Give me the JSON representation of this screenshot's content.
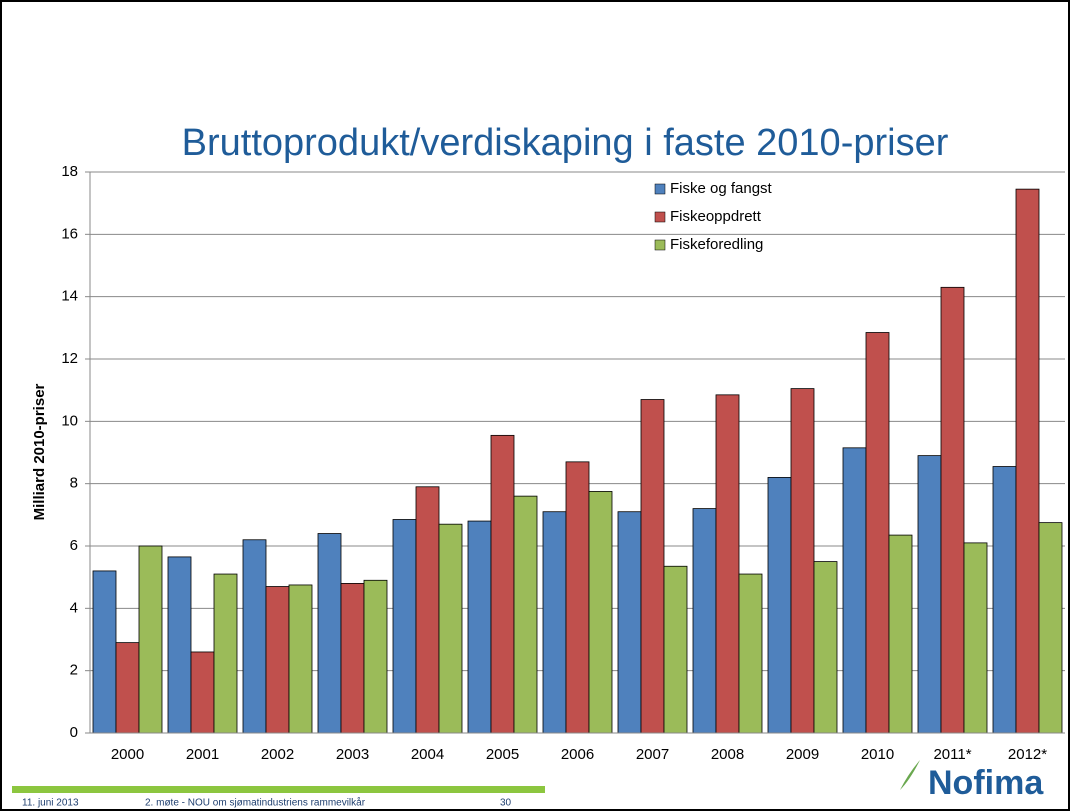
{
  "chart_data": {
    "type": "bar",
    "title": "Bruttoprodukt/verdiskaping i faste 2010-priser",
    "y_label": "Milliard 2010-priser",
    "categories": [
      "2000",
      "2001",
      "2002",
      "2003",
      "2004",
      "2005",
      "2006",
      "2007",
      "2008",
      "2009",
      "2010",
      "2011*",
      "2012*"
    ],
    "series": [
      {
        "name": "Fiske og fangst",
        "color": "#4f81bd",
        "values": [
          5.2,
          5.65,
          6.2,
          6.4,
          6.85,
          6.8,
          7.1,
          7.1,
          7.2,
          8.2,
          9.15,
          8.9,
          8.55
        ]
      },
      {
        "name": "Fiskeoppdrett",
        "color": "#c0504d",
        "values": [
          2.9,
          2.6,
          4.7,
          4.8,
          7.9,
          9.55,
          8.7,
          10.7,
          10.85,
          11.05,
          12.85,
          14.3,
          17.45
        ]
      },
      {
        "name": "Fiskeforedling",
        "color": "#9bbb59",
        "values": [
          6.0,
          5.1,
          4.75,
          4.9,
          6.7,
          7.6,
          7.75,
          5.35,
          5.1,
          5.5,
          6.35,
          6.1,
          6.75
        ]
      }
    ],
    "ylim": [
      0,
      18
    ],
    "yticks": [
      0,
      2,
      4,
      6,
      8,
      10,
      12,
      14,
      16,
      18
    ],
    "grid": true,
    "legend": "top-right"
  },
  "footer": {
    "date": "11. juni 2013",
    "text": "2. møte - NOU om sjømatindustriens rammevilkår",
    "page": "30",
    "logo": "Nofima"
  }
}
